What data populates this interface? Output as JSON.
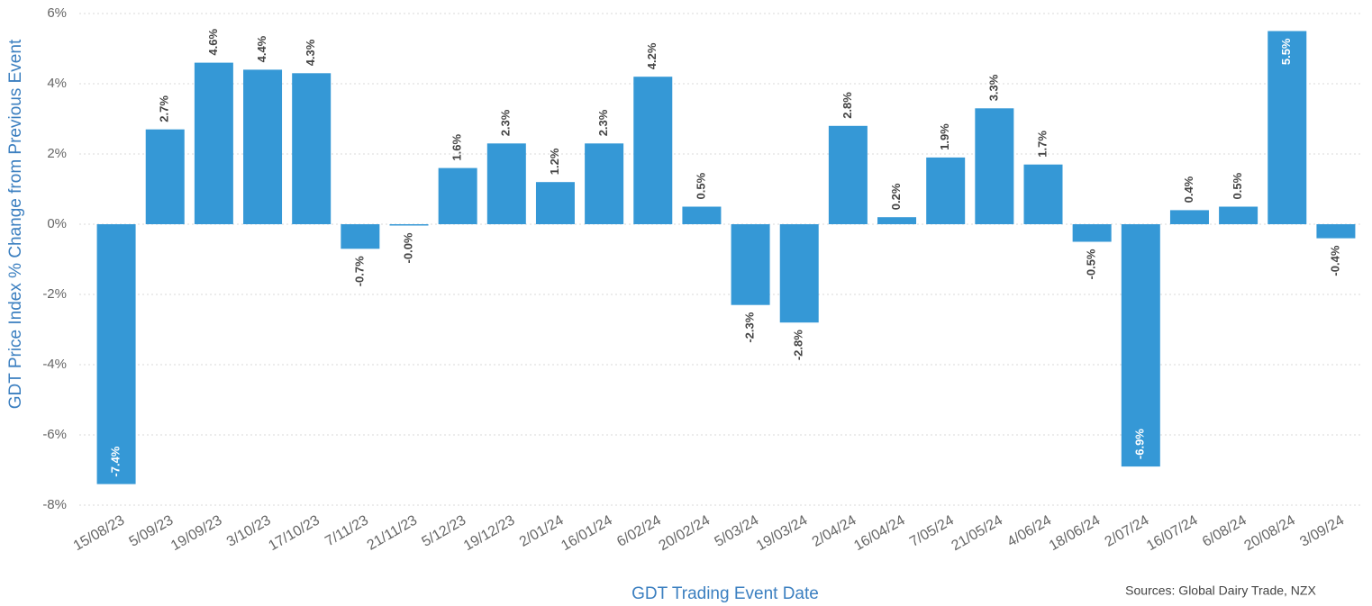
{
  "chart_data": {
    "type": "bar",
    "y_axis_label": "GDT Price Index % Change from Previous Event",
    "x_axis_label": "GDT Trading Event Date",
    "source": "Sources: Global Dairy Trade, NZX",
    "color": "#3598d6",
    "grid": true,
    "categories": [
      "15/08/23",
      "5/09/23",
      "19/09/23",
      "3/10/23",
      "17/10/23",
      "7/11/23",
      "21/11/23",
      "5/12/23",
      "19/12/23",
      "2/01/24",
      "16/01/24",
      "6/02/24",
      "20/02/24",
      "5/03/24",
      "19/03/24",
      "2/04/24",
      "16/04/24",
      "7/05/24",
      "21/05/24",
      "4/06/24",
      "18/06/24",
      "2/07/24",
      "16/07/24",
      "6/08/24",
      "20/08/24",
      "3/09/24"
    ],
    "values": [
      -7.4,
      2.7,
      4.6,
      4.4,
      4.3,
      -0.7,
      -0.02,
      1.6,
      2.3,
      1.2,
      2.3,
      4.2,
      0.5,
      -2.3,
      -2.8,
      2.8,
      0.2,
      1.9,
      3.3,
      1.7,
      -0.5,
      -6.9,
      0.4,
      0.5,
      5.5,
      -0.4
    ],
    "value_labels": [
      "-7.4%",
      "2.7%",
      "4.6%",
      "4.4%",
      "4.3%",
      "-0.7%",
      "-0.0%",
      "1.6%",
      "2.3%",
      "1.2%",
      "2.3%",
      "4.2%",
      "0.5%",
      "-2.3%",
      "-2.8%",
      "2.8%",
      "0.2%",
      "1.9%",
      "3.3%",
      "1.7%",
      "-0.5%",
      "-6.9%",
      "0.4%",
      "0.5%",
      "5.5%",
      "-0.4%"
    ],
    "ylim": [
      -8,
      6
    ],
    "yticks": [
      {
        "value": -8,
        "label": "-8%"
      },
      {
        "value": -6,
        "label": "-6%"
      },
      {
        "value": -4,
        "label": "-4%"
      },
      {
        "value": -2,
        "label": "-2%"
      },
      {
        "value": 0,
        "label": "0%"
      },
      {
        "value": 2,
        "label": "2%"
      },
      {
        "value": 4,
        "label": "4%"
      },
      {
        "value": 6,
        "label": "6%"
      }
    ]
  }
}
